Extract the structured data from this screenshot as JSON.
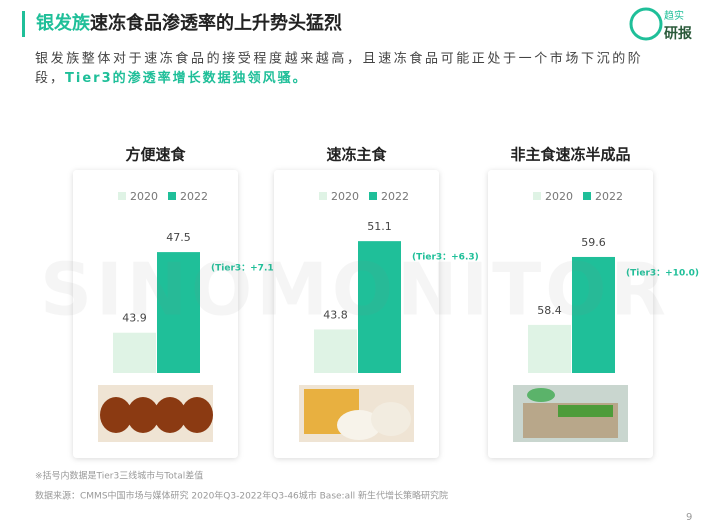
{
  "header": {
    "title_highlight": "银发族",
    "title_rest": "速冻食品渗透率的上升势头猛烈",
    "subtitle_line1": "银发族整体对于速冻食品的接受程度越来越高，且速冻食品可能正处于一个市场下沉的阶",
    "subtitle_line2": "段，",
    "subtitle_bold": "Tier3的渗透率增长数据独领风骚。"
  },
  "logo": {
    "line1": "趋实",
    "line2": "研报"
  },
  "watermark": "SINOMONITOR",
  "chart_data": [
    {
      "type": "bar",
      "title": "方便速食",
      "ylim": [
        42.1,
        48.8
      ],
      "annotation": "(Tier3：+7.1)",
      "series": [
        {
          "name": "2020",
          "color": "#dff3e5",
          "values": [
            43.9
          ]
        },
        {
          "name": "2022",
          "color": "#1fbf99",
          "values": [
            47.5
          ]
        }
      ]
    },
    {
      "type": "bar",
      "title": "速冻主食",
      "ylim": [
        40.2,
        52.6
      ],
      "annotation": "(Tier3：+6.3)",
      "series": [
        {
          "name": "2020",
          "color": "#dff3e5",
          "values": [
            43.8
          ]
        },
        {
          "name": "2022",
          "color": "#1fbf99",
          "values": [
            51.1
          ]
        }
      ]
    },
    {
      "type": "bar",
      "title": "非主食速冻半成品",
      "ylim": [
        57.55,
        60.2
      ],
      "annotation": "(Tier3：+10.0)",
      "series": [
        {
          "name": "2020",
          "color": "#dff3e5",
          "values": [
            58.4
          ]
        },
        {
          "name": "2022",
          "color": "#1fbf99",
          "values": [
            59.6
          ]
        }
      ]
    }
  ],
  "footnote": "※括号内数据是Tier3三线城市与Total差值",
  "source": "数据来源：CMMS中国市场与媒体研究 2020年Q3-2022年Q3-46城市 Base:all  新生代增长策略研究院",
  "page_number": "9"
}
